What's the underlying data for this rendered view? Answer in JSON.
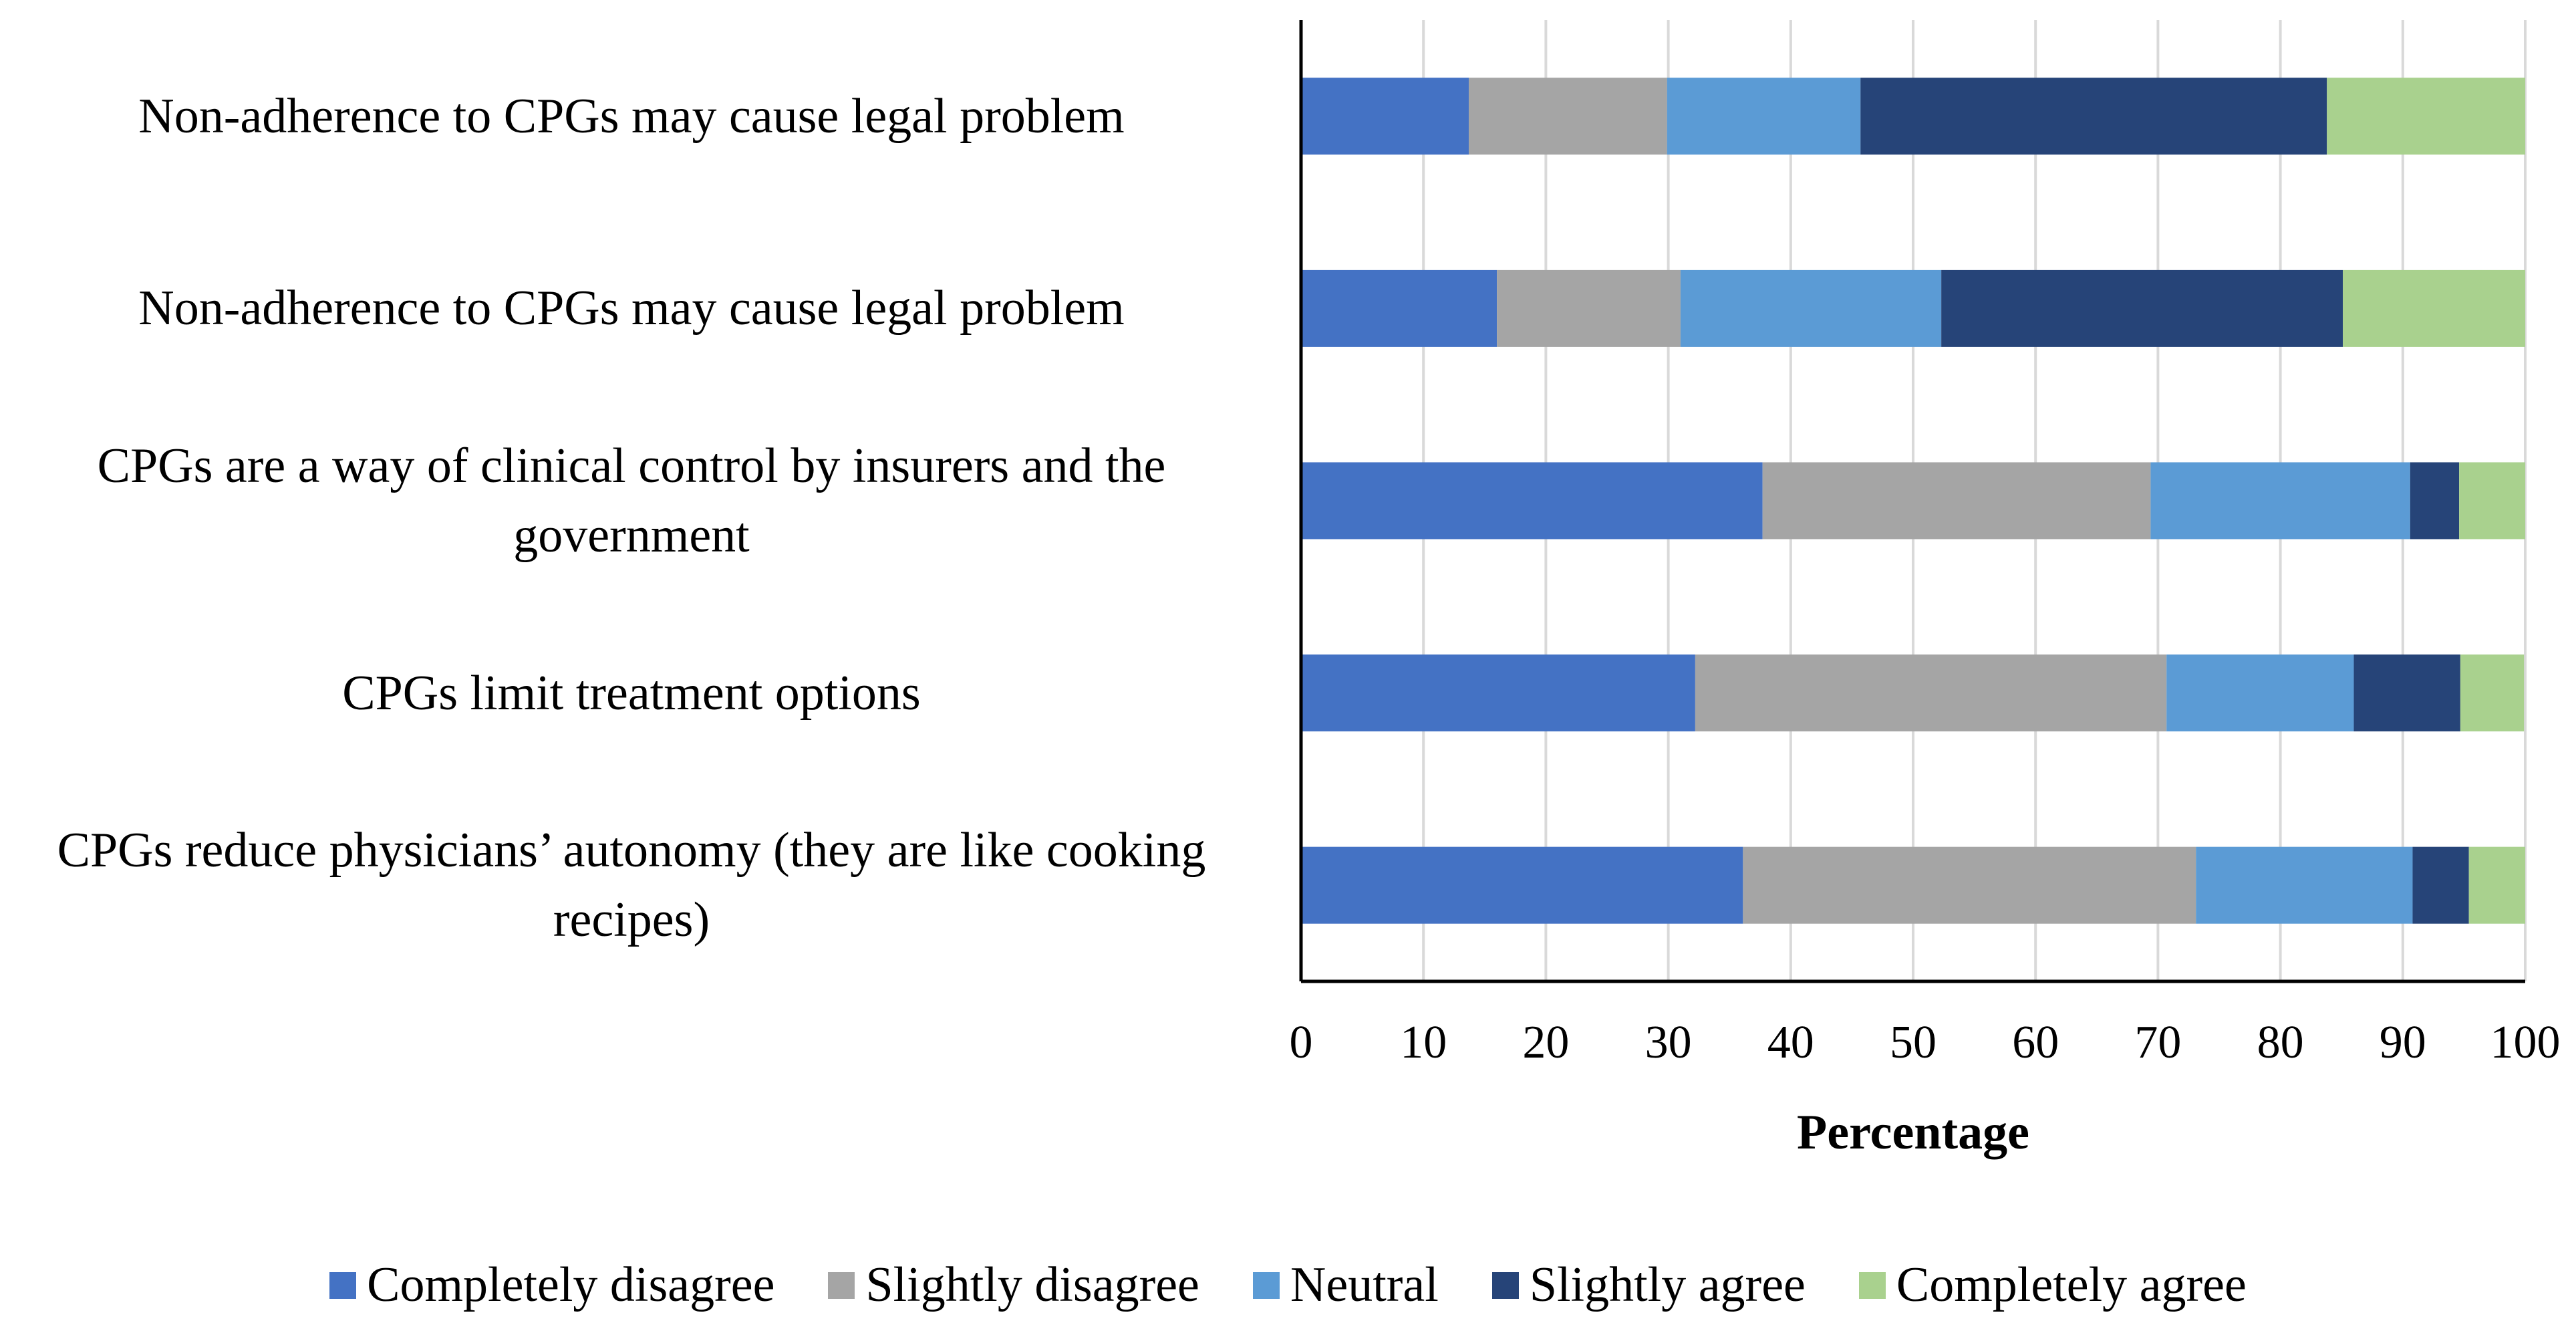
{
  "chart_data": {
    "type": "stacked-barh",
    "x_label": "Percentage",
    "categories": [
      "Non-adherence to CPGs may cause legal problem",
      "Non-adherence to CPGs may cause legal problem",
      "CPGs are a way of clinical control by insurers and the government",
      "CPGs limit treatment options",
      "CPGs reduce physicians’ autonomy (they are like cooking recipes)"
    ],
    "series": [
      {
        "name": "Completely disagree",
        "color": "#4472c4",
        "values": [
          13.7,
          16.0,
          37.7,
          32.2,
          36.1
        ]
      },
      {
        "name": "Slightly disagree",
        "color": "#a5a5a5",
        "values": [
          16.2,
          15.0,
          31.7,
          38.5,
          37.0
        ]
      },
      {
        "name": "Neutral",
        "color": "#5b9bd5",
        "values": [
          15.8,
          21.3,
          21.2,
          15.3,
          17.7
        ]
      },
      {
        "name": "Slightly agree",
        "color": "#264478",
        "values": [
          38.1,
          32.8,
          4.0,
          8.7,
          4.6
        ]
      },
      {
        "name": "Completely agree",
        "color": "#a9d18e",
        "values": [
          16.2,
          14.9,
          5.4,
          5.2,
          4.6
        ]
      }
    ],
    "xlim": [
      0,
      100
    ],
    "xticks": [
      0,
      10,
      20,
      30,
      40,
      50,
      60,
      70,
      80,
      90,
      100
    ],
    "grid": true
  }
}
